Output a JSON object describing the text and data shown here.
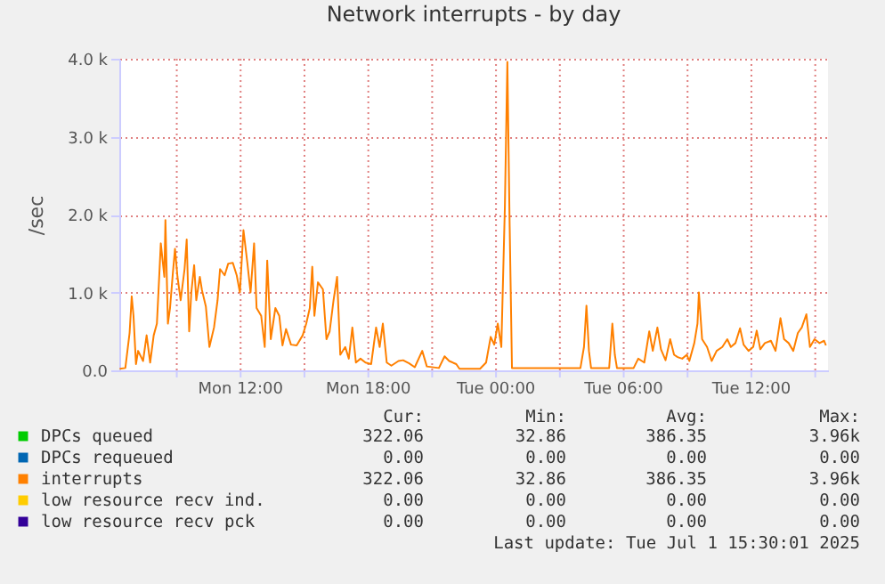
{
  "chart_data": {
    "type": "line",
    "title": "Network interrupts - by day",
    "ylabel": "/sec",
    "xlim": [
      "2025-06-30T06:18",
      "2025-07-01T15:36"
    ],
    "xticks": [
      {
        "value": "2025-06-30T09:00",
        "label": null
      },
      {
        "value": "2025-06-30T12:00",
        "label": "Mon 12:00"
      },
      {
        "value": "2025-06-30T15:00",
        "label": null
      },
      {
        "value": "2025-06-30T18:00",
        "label": "Mon 18:00"
      },
      {
        "value": "2025-06-30T21:00",
        "label": null
      },
      {
        "value": "2025-07-01T00:00",
        "label": "Tue 00:00"
      },
      {
        "value": "2025-07-01T03:00",
        "label": null
      },
      {
        "value": "2025-07-01T06:00",
        "label": "Tue 06:00"
      },
      {
        "value": "2025-07-01T09:00",
        "label": null
      },
      {
        "value": "2025-07-01T12:00",
        "label": "Tue 12:00"
      },
      {
        "value": "2025-07-01T15:00",
        "label": null
      }
    ],
    "ylim": [
      0,
      4000
    ],
    "yticks": [
      {
        "value": 0,
        "label": "0.0"
      },
      {
        "value": 1000,
        "label": "1.0 k"
      },
      {
        "value": 2000,
        "label": "2.0 k"
      },
      {
        "value": 3000,
        "label": "3.0 k"
      },
      {
        "value": 4000,
        "label": "4.0 k"
      }
    ],
    "grid": true,
    "legend": "bottom",
    "line_style": "solid",
    "marker": "none",
    "series": [
      {
        "name": "DPCs queued",
        "color": "#00cc00"
      },
      {
        "name": "DPCs requeued",
        "color": "#0066b3"
      },
      {
        "name": "interrupts",
        "color": "#ff8000",
        "x": [
          "2025-06-30T06:19",
          "2025-06-30T06:35",
          "2025-06-30T06:47",
          "2025-06-30T06:53",
          "2025-06-30T06:58",
          "2025-06-30T07:05",
          "2025-06-30T07:11",
          "2025-06-30T07:25",
          "2025-06-30T07:35",
          "2025-06-30T07:45",
          "2025-06-30T07:55",
          "2025-06-30T08:04",
          "2025-06-30T08:11",
          "2025-06-30T08:15",
          "2025-06-30T08:25",
          "2025-06-30T08:28",
          "2025-06-30T08:35",
          "2025-06-30T08:41",
          "2025-06-30T08:49",
          "2025-06-30T08:55",
          "2025-06-30T09:02",
          "2025-06-30T09:11",
          "2025-06-30T09:22",
          "2025-06-30T09:28",
          "2025-06-30T09:35",
          "2025-06-30T09:41",
          "2025-06-30T09:49",
          "2025-06-30T09:55",
          "2025-06-30T10:05",
          "2025-06-30T10:11",
          "2025-06-30T10:22",
          "2025-06-30T10:32",
          "2025-06-30T10:45",
          "2025-06-30T10:55",
          "2025-06-30T11:02",
          "2025-06-30T11:15",
          "2025-06-30T11:25",
          "2025-06-30T11:38",
          "2025-06-30T11:49",
          "2025-06-30T11:58",
          "2025-06-30T12:08",
          "2025-06-30T12:19",
          "2025-06-30T12:28",
          "2025-06-30T12:38",
          "2025-06-30T12:45",
          "2025-06-30T12:58",
          "2025-06-30T13:08",
          "2025-06-30T13:15",
          "2025-06-30T13:25",
          "2025-06-30T13:38",
          "2025-06-30T13:49",
          "2025-06-30T13:58",
          "2025-06-30T14:08",
          "2025-06-30T14:22",
          "2025-06-30T14:38",
          "2025-06-30T14:55",
          "2025-06-30T15:05",
          "2025-06-30T15:15",
          "2025-06-30T15:22",
          "2025-06-30T15:28",
          "2025-06-30T15:38",
          "2025-06-30T15:52",
          "2025-06-30T16:02",
          "2025-06-30T16:11",
          "2025-06-30T16:22",
          "2025-06-30T16:32",
          "2025-06-30T16:41",
          "2025-06-30T16:55",
          "2025-06-30T17:05",
          "2025-06-30T17:15",
          "2025-06-30T17:25",
          "2025-06-30T17:38",
          "2025-06-30T17:52",
          "2025-06-30T18:08",
          "2025-06-30T18:22",
          "2025-06-30T18:32",
          "2025-06-30T18:41",
          "2025-06-30T18:52",
          "2025-06-30T19:05",
          "2025-06-30T19:25",
          "2025-06-30T19:38",
          "2025-06-30T19:55",
          "2025-06-30T20:11",
          "2025-06-30T20:32",
          "2025-06-30T20:45",
          "2025-06-30T21:19",
          "2025-06-30T21:35",
          "2025-06-30T21:48",
          "2025-06-30T22:08",
          "2025-06-30T22:17",
          "2025-06-30T23:15",
          "2025-06-30T23:32",
          "2025-06-30T23:45",
          "2025-06-30T23:55",
          "2025-07-01T00:05",
          "2025-07-01T00:15",
          "2025-07-01T00:25",
          "2025-07-01T00:32",
          "2025-07-01T00:38",
          "2025-07-01T00:45",
          "2025-07-01T02:19",
          "2025-07-01T03:58",
          "2025-07-01T04:08",
          "2025-07-01T04:15",
          "2025-07-01T04:22",
          "2025-07-01T04:28",
          "2025-07-01T05:19",
          "2025-07-01T05:28",
          "2025-07-01T05:35",
          "2025-07-01T05:41",
          "2025-07-01T06:28",
          "2025-07-01T06:41",
          "2025-07-01T06:58",
          "2025-07-01T07:12",
          "2025-07-01T07:22",
          "2025-07-01T07:35",
          "2025-07-01T07:45",
          "2025-07-01T07:58",
          "2025-07-01T08:11",
          "2025-07-01T08:22",
          "2025-07-01T08:32",
          "2025-07-01T08:45",
          "2025-07-01T08:58",
          "2025-07-01T09:05",
          "2025-07-01T09:19",
          "2025-07-01T09:28",
          "2025-07-01T09:32",
          "2025-07-01T09:41",
          "2025-07-01T09:55",
          "2025-07-01T10:08",
          "2025-07-01T10:22",
          "2025-07-01T10:38",
          "2025-07-01T10:52",
          "2025-07-01T11:02",
          "2025-07-01T11:15",
          "2025-07-01T11:28",
          "2025-07-01T11:38",
          "2025-07-01T11:52",
          "2025-07-01T12:05",
          "2025-07-01T12:15",
          "2025-07-01T12:25",
          "2025-07-01T12:38",
          "2025-07-01T12:55",
          "2025-07-01T13:08",
          "2025-07-01T13:22",
          "2025-07-01T13:32",
          "2025-07-01T13:45",
          "2025-07-01T13:58",
          "2025-07-01T14:11",
          "2025-07-01T14:22",
          "2025-07-01T14:35",
          "2025-07-01T14:45",
          "2025-07-01T14:58",
          "2025-07-01T15:12",
          "2025-07-01T15:25",
          "2025-07-01T15:30"
        ],
        "values": [
          20,
          30,
          480,
          950,
          700,
          80,
          250,
          120,
          450,
          100,
          450,
          600,
          1250,
          1630,
          1200,
          1930,
          600,
          800,
          1250,
          1560,
          1200,
          900,
          1300,
          1680,
          500,
          1000,
          1350,
          900,
          1200,
          1030,
          820,
          300,
          550,
          900,
          1300,
          1220,
          1370,
          1380,
          1220,
          1000,
          1800,
          1380,
          1000,
          1630,
          800,
          700,
          300,
          1410,
          400,
          800,
          700,
          320,
          530,
          330,
          320,
          450,
          600,
          800,
          1330,
          700,
          1130,
          1040,
          400,
          500,
          900,
          1200,
          200,
          300,
          150,
          550,
          100,
          150,
          100,
          80,
          550,
          300,
          600,
          100,
          60,
          120,
          130,
          90,
          40,
          250,
          50,
          30,
          180,
          120,
          80,
          20,
          20,
          100,
          430,
          330,
          600,
          300,
          2100,
          3960,
          2000,
          30,
          30,
          30,
          300,
          830,
          250,
          30,
          30,
          600,
          200,
          30,
          30,
          150,
          100,
          500,
          250,
          550,
          270,
          130,
          400,
          200,
          170,
          150,
          200,
          120,
          350,
          600,
          1000,
          400,
          300,
          120,
          250,
          300,
          400,
          300,
          350,
          540,
          330,
          250,
          300,
          510,
          270,
          350,
          380,
          250,
          670,
          400,
          350,
          250,
          480,
          550,
          720,
          300,
          400,
          350,
          380,
          320
        ]
      },
      {
        "name": "low resource recv ind.",
        "color": "#ffcc00"
      },
      {
        "name": "low resource recv pck",
        "color": "#330099"
      }
    ],
    "annotations": [
      "Cur:",
      "Min:",
      "Avg:",
      "Max:",
      "322.06",
      "32.86",
      "386.35",
      "3.96k",
      "0.00",
      "0.00",
      "0.00",
      "0.00",
      "322.06",
      "32.86",
      "386.35",
      "3.96k",
      "0.00",
      "0.00",
      "0.00",
      "0.00",
      "0.00",
      "0.00",
      "0.00",
      "0.00",
      "Last update:  Tue Jul  1 15:30:01 2025"
    ]
  }
}
